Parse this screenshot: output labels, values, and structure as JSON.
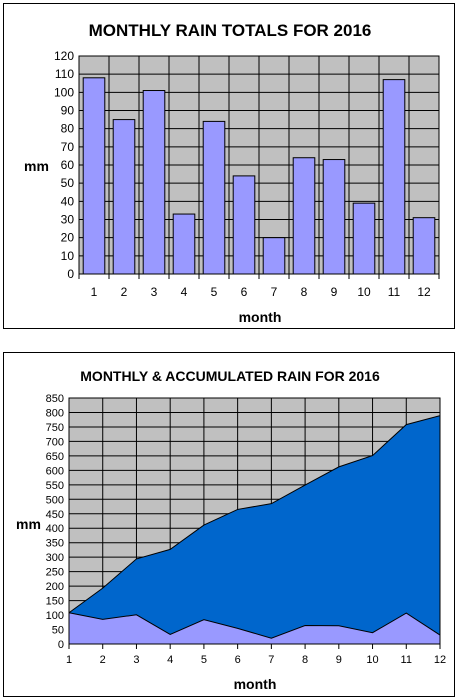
{
  "chart_data": [
    {
      "type": "bar",
      "title": "MONTHLY RAIN TOTALS FOR 2016",
      "xlabel": "month",
      "ylabel": "mm",
      "categories": [
        "1",
        "2",
        "3",
        "4",
        "5",
        "6",
        "7",
        "8",
        "9",
        "10",
        "11",
        "12"
      ],
      "values": [
        108,
        85,
        101,
        33,
        84,
        54,
        20,
        64,
        63,
        39,
        107,
        31
      ],
      "ylim": [
        0,
        120
      ],
      "ytick_step": 10,
      "grid": true,
      "plot_background": "#c0c0c0",
      "bar_color": "#9999ff",
      "legend": "none"
    },
    {
      "type": "area",
      "title": "MONTHLY & ACCUMULATED RAIN FOR 2016",
      "xlabel": "month",
      "ylabel": "mm",
      "x": [
        1,
        2,
        3,
        4,
        5,
        6,
        7,
        8,
        9,
        10,
        11,
        12
      ],
      "series": [
        {
          "values": [
            108,
            193,
            294,
            327,
            411,
            465,
            485,
            549,
            612,
            651,
            758,
            789
          ],
          "color": "#0066cc"
        },
        {
          "values": [
            108,
            85,
            101,
            33,
            84,
            54,
            20,
            64,
            63,
            39,
            107,
            31
          ],
          "color": "#9999ff"
        }
      ],
      "ylim": [
        0,
        850
      ],
      "ytick_step": 50,
      "grid": true,
      "plot_background": "#c0c0c0",
      "legend": "none"
    }
  ]
}
